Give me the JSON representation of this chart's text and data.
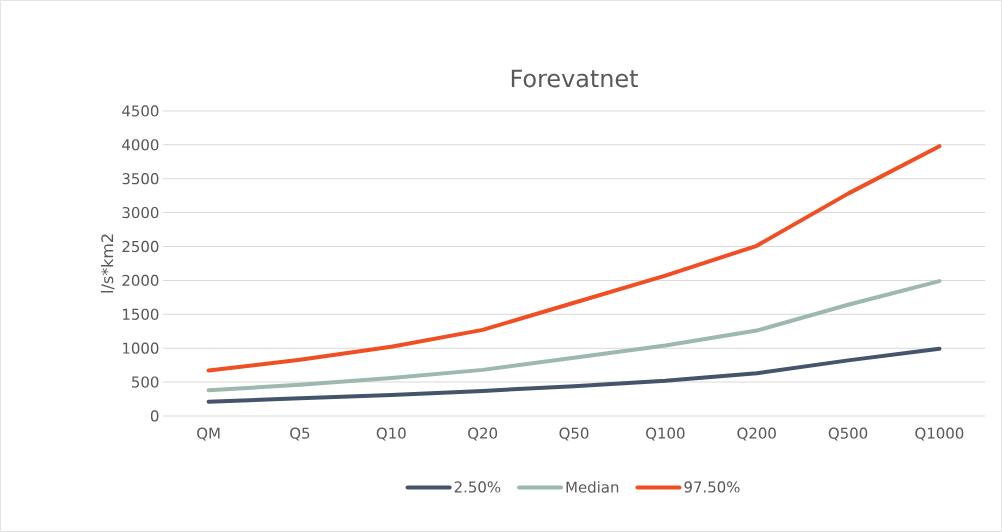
{
  "chart_data": {
    "type": "line",
    "title": "Forevatnet",
    "ylabel": "l/s*km2",
    "categories": [
      "QM",
      "Q5",
      "Q10",
      "Q20",
      "Q50",
      "Q100",
      "Q200",
      "Q500",
      "Q1000"
    ],
    "series": [
      {
        "name": "2.50%",
        "color": "#44546a",
        "values": [
          210,
          260,
          310,
          370,
          440,
          520,
          630,
          820,
          990
        ]
      },
      {
        "name": "Median",
        "color": "#9db8ac",
        "values": [
          380,
          460,
          560,
          680,
          860,
          1040,
          1260,
          1640,
          1990
        ]
      },
      {
        "name": "97.50%",
        "color": "#f04e23",
        "values": [
          670,
          830,
          1020,
          1270,
          1670,
          2070,
          2510,
          3280,
          3980
        ]
      }
    ],
    "ylim": [
      0,
      4500
    ],
    "yticks": [
      0,
      500,
      1000,
      1500,
      2000,
      2500,
      3000,
      3500,
      4000,
      4500
    ],
    "grid": "y",
    "legend": "bottom",
    "marker": "none",
    "line_style": "solid"
  }
}
